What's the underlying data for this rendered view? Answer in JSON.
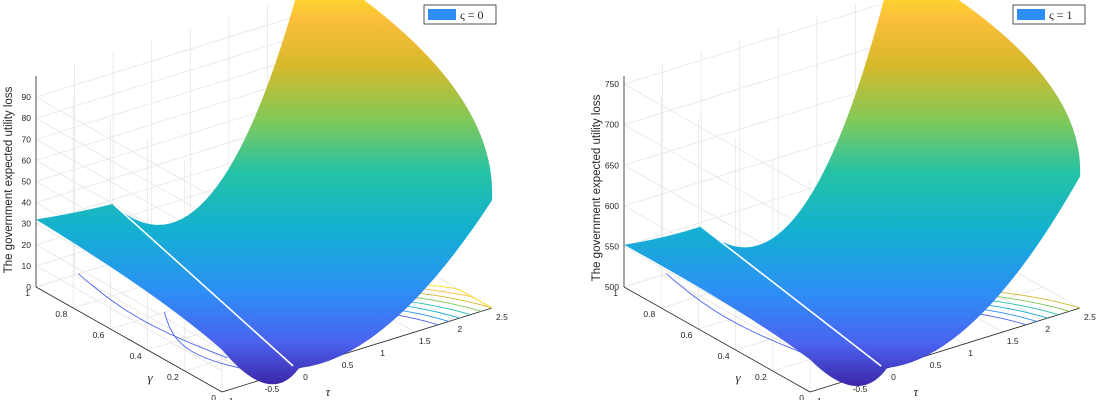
{
  "chart_data": [
    {
      "type": "surface",
      "zlabel": "The government expected utility loss",
      "xlabel": "τ",
      "ylabel": "γ",
      "legend": "ς = 0",
      "legend_position": "top-right",
      "grid": true,
      "x_ticks": [
        "-1",
        "-0.5",
        "0",
        "0.5",
        "1",
        "1.5",
        "2",
        "2.5"
      ],
      "y_ticks": [
        "0",
        "0.2",
        "0.4",
        "0.6",
        "0.8",
        "1"
      ],
      "z_ticks": [
        "0",
        "10",
        "20",
        "30",
        "40",
        "50",
        "60",
        "70",
        "80",
        "90"
      ],
      "xlim": [
        -1,
        2.5
      ],
      "ylim": [
        0,
        1
      ],
      "zlim": [
        0,
        100
      ],
      "surface_points": [
        {
          "tau": -1,
          "gamma": 1,
          "loss": 32
        },
        {
          "tau": -1,
          "gamma": 0,
          "loss": 20
        },
        {
          "tau": 0,
          "gamma": 0,
          "loss": 0
        },
        {
          "tau": 0,
          "gamma": 1,
          "loss": 28
        },
        {
          "tau": 2.5,
          "gamma": 1,
          "loss": 115
        },
        {
          "tau": 2.5,
          "gamma": 0,
          "loss": 51
        }
      ],
      "minimum_line": {
        "tau": 0,
        "gamma_range": [
          0,
          1
        ]
      },
      "colormap": [
        "#3e26a8",
        "#4a63f0",
        "#2d8ff5",
        "#13b0d2",
        "#24c2a6",
        "#7fc95a",
        "#d6b92b",
        "#fcbe3a",
        "#f9fb15"
      ]
    },
    {
      "type": "surface",
      "zlabel": "The government expected utility loss",
      "xlabel": "τ",
      "ylabel": "γ",
      "legend": "ς = 1",
      "legend_position": "top-right",
      "grid": true,
      "x_ticks": [
        "-1",
        "-0.5",
        "0",
        "0.5",
        "1",
        "1.5",
        "2",
        "2.5"
      ],
      "y_ticks": [
        "0",
        "0.2",
        "0.4",
        "0.6",
        "0.8",
        "1"
      ],
      "z_ticks": [
        "500",
        "550",
        "600",
        "650",
        "700",
        "750"
      ],
      "xlim": [
        -1,
        2.5
      ],
      "ylim": [
        0,
        1
      ],
      "zlim": [
        500,
        760
      ],
      "surface_points": [
        {
          "tau": -1,
          "gamma": 1,
          "loss": 552
        },
        {
          "tau": -1,
          "gamma": 0,
          "loss": 540
        },
        {
          "tau": 0,
          "gamma": 0,
          "loss": 500
        },
        {
          "tau": 0,
          "gamma": 1,
          "loss": 545
        },
        {
          "tau": 2.5,
          "gamma": 1,
          "loss": 800
        },
        {
          "tau": 2.5,
          "gamma": 0,
          "loss": 662
        }
      ],
      "minimum_line": {
        "tau": 0,
        "gamma_range": [
          0,
          1
        ]
      },
      "colormap": [
        "#3e26a8",
        "#4a63f0",
        "#2d8ff5",
        "#13b0d2",
        "#24c2a6",
        "#7fc95a",
        "#d6b92b",
        "#fcbe3a",
        "#f9fb15"
      ]
    }
  ]
}
